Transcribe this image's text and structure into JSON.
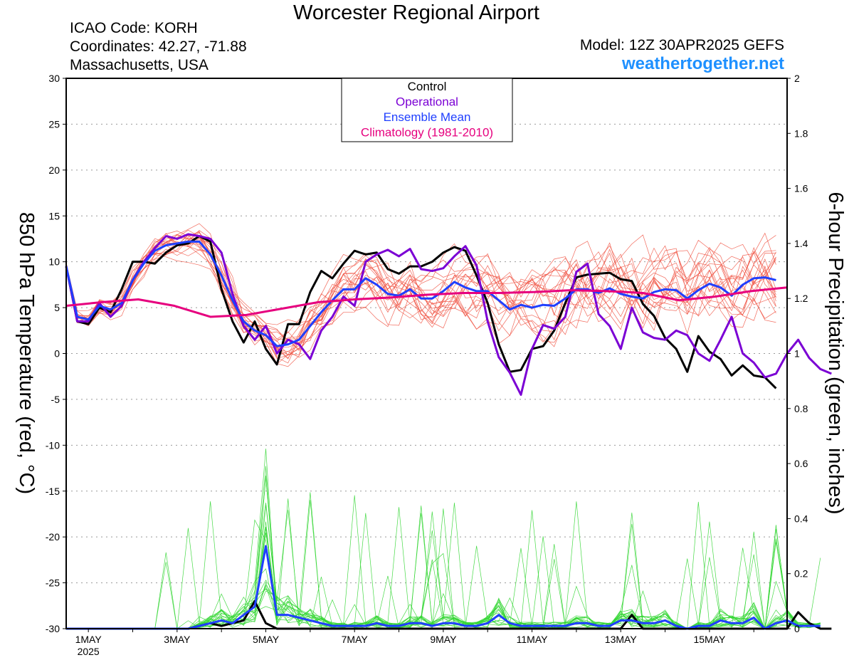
{
  "header": {
    "title": "Worcester Regional Airport",
    "icao": "ICAO Code: KORH",
    "coordinates": "Coordinates: 42.27, -71.88",
    "location": "Massachusetts, USA",
    "model": "Model: 12Z 30APR2025 GEFS",
    "site": "weathertogether.net"
  },
  "colors": {
    "control": "#000000",
    "operational": "#7b00d4",
    "ensemble_mean": "#1f3fff",
    "climatology": "#e6007e",
    "members_temp": "#f05040",
    "members_precip": "#33d633",
    "grid": "#999999"
  },
  "chart_data": {
    "type": "line",
    "x_ticks": [
      {
        "day": 1,
        "label": "1MAY",
        "sublabel": "2025"
      },
      {
        "day": 3,
        "label": "3MAY"
      },
      {
        "day": 5,
        "label": "5MAY"
      },
      {
        "day": 7,
        "label": "7MAY"
      },
      {
        "day": 9,
        "label": "9MAY"
      },
      {
        "day": 11,
        "label": "11MAY"
      },
      {
        "day": 13,
        "label": "13MAY"
      },
      {
        "day": 15,
        "label": "15MAY"
      }
    ],
    "xlim": [
      0.5,
      16.75
    ],
    "x_step_days": 0.25,
    "left_axis": {
      "label": "850 hPa Temperature (red, °C)",
      "ylim": [
        -30,
        30
      ],
      "ticks": [
        -30,
        -25,
        -20,
        -15,
        -10,
        -5,
        0,
        5,
        10,
        15,
        20,
        25,
        30
      ]
    },
    "right_axis": {
      "label": "6-hour Precipitation (green, inches)",
      "ylim": [
        0,
        2
      ],
      "ticks": [
        0,
        0.2,
        0.4,
        0.6,
        0.8,
        1,
        1.2,
        1.4,
        1.6,
        1.8,
        2
      ]
    },
    "legend": {
      "placement": "top-center",
      "entries": [
        "Control",
        "Operational",
        "Ensemble Mean",
        "Climatology (1981-2010)"
      ]
    },
    "grid": true,
    "series": [
      {
        "name": "Control",
        "axis": "temperature",
        "values": [
          9.5,
          3.5,
          3.2,
          5.0,
          4.5,
          7.0,
          10.0,
          10.0,
          9.8,
          11.0,
          11.8,
          12.0,
          12.8,
          12.2,
          7.0,
          3.5,
          1.2,
          3.5,
          0.5,
          -1.2,
          3.2,
          3.2,
          6.7,
          9.0,
          8.2,
          9.8,
          11.2,
          10.8,
          11.0,
          9.2,
          8.7,
          9.5,
          9.5,
          10.0,
          11.0,
          11.6,
          11.2,
          8.5,
          5.5,
          1.0,
          -2.0,
          -1.8,
          0.5,
          0.8,
          2.5,
          5.5,
          8.3,
          8.6,
          8.7,
          8.8,
          8.1,
          7.9,
          5.4,
          4.1,
          1.7,
          0.5,
          -2.0,
          1.9,
          0.2,
          -0.6,
          -2.4,
          -1.3,
          -2.4,
          -2.6,
          -3.8
        ]
      },
      {
        "name": "Operational",
        "axis": "temperature",
        "values": [
          9.5,
          3.5,
          3.5,
          5.5,
          4.0,
          5.2,
          8.0,
          10.0,
          11.5,
          12.8,
          12.5,
          13.0,
          12.8,
          12.5,
          11.0,
          6.5,
          3.0,
          1.5,
          3.0,
          0.0,
          1.5,
          1.0,
          -0.6,
          2.5,
          4.0,
          6.2,
          5.2,
          10.0,
          10.8,
          11.3,
          10.6,
          11.4,
          9.2,
          9.0,
          9.3,
          10.6,
          11.7,
          9.6,
          3.5,
          -0.4,
          -2.1,
          -4.5,
          0.5,
          3.1,
          2.7,
          4.0,
          8.9,
          9.8,
          4.3,
          3.0,
          0.5,
          5.0,
          2.3,
          1.7,
          1.5,
          2.5,
          2.0,
          0.0,
          -0.8,
          1.5,
          4.0,
          0.0,
          -1.0,
          -2.6,
          -2.2,
          0.0,
          1.5,
          -0.5,
          -1.7,
          -2.2
        ]
      },
      {
        "name": "Ensemble Mean",
        "axis": "temperature",
        "values": [
          9.5,
          4.0,
          3.7,
          5.2,
          4.8,
          5.5,
          8.0,
          9.8,
          11.2,
          11.8,
          12.0,
          12.2,
          12.2,
          10.8,
          8.5,
          5.8,
          3.5,
          2.5,
          2.0,
          0.8,
          1.0,
          1.5,
          3.0,
          4.5,
          5.8,
          7.0,
          7.0,
          8.2,
          7.5,
          6.5,
          6.3,
          7.0,
          6.0,
          6.0,
          6.8,
          7.8,
          7.2,
          6.8,
          6.8,
          5.8,
          4.8,
          5.3,
          5.0,
          5.3,
          5.2,
          6.0,
          7.0,
          7.0,
          6.6,
          7.1,
          6.5,
          6.2,
          6.0,
          6.7,
          7.0,
          6.9,
          6.0,
          6.9,
          7.6,
          7.2,
          6.3,
          7.5,
          8.2,
          8.3,
          8.0
        ]
      },
      {
        "name": "Climatology (1981-2010)",
        "axis": "temperature",
        "values": [
          5.2,
          5.6,
          5.9,
          5.2,
          4.0,
          4.2,
          4.9,
          5.6,
          5.9,
          6.1,
          6.4,
          6.6,
          6.6,
          6.7,
          6.9,
          6.8,
          6.6,
          5.8,
          6.2,
          6.8,
          7.2
        ]
      },
      {
        "name": "Control precipitation",
        "axis": "precipitation",
        "values": [
          0,
          0,
          0,
          0,
          0,
          0,
          0,
          0,
          0,
          0,
          0,
          0,
          0.01,
          0.02,
          0.01,
          0.02,
          0.03,
          0.1,
          0.02,
          0,
          0,
          0,
          0,
          0,
          0,
          0,
          0,
          0,
          0,
          0,
          0,
          0,
          0,
          0,
          0,
          0,
          0,
          0,
          0,
          0,
          0,
          0,
          0,
          0,
          0,
          0,
          0,
          0,
          0,
          0,
          0,
          0.05,
          0,
          0,
          0,
          0,
          0,
          0,
          0,
          0,
          0,
          0,
          0,
          0,
          0,
          0,
          0.06,
          0.02,
          0,
          0
        ]
      },
      {
        "name": "Ensemble Mean precipitation",
        "axis": "precipitation",
        "values": [
          0,
          0,
          0,
          0,
          0,
          0,
          0,
          0,
          0,
          0,
          0,
          0,
          0.01,
          0.02,
          0.03,
          0.02,
          0.05,
          0.08,
          0.3,
          0.05,
          0.05,
          0.04,
          0.03,
          0.02,
          0.01,
          0.01,
          0.01,
          0.01,
          0.02,
          0.01,
          0.01,
          0.02,
          0.02,
          0.01,
          0.02,
          0.02,
          0.01,
          0.01,
          0.02,
          0.05,
          0.02,
          0.01,
          0.01,
          0.01,
          0.01,
          0.01,
          0.02,
          0.02,
          0.01,
          0.01,
          0.03,
          0.03,
          0.02,
          0.02,
          0.03,
          0.01,
          0,
          0.01,
          0.01,
          0.03,
          0.02,
          0.02,
          0.04,
          0,
          0.02,
          0.03,
          0.01,
          0.01,
          0.01
        ]
      }
    ],
    "ensemble_member_count": 20
  }
}
